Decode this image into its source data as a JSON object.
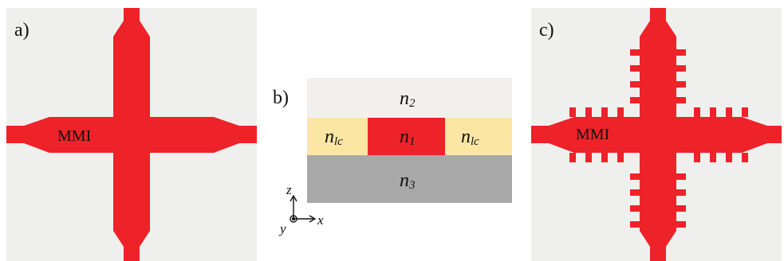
{
  "colors": {
    "waveguide": "#ee2229",
    "panel_background": "#efefee",
    "cladding_top": "#f1f0ee",
    "cladding_side": "#fbe6a4",
    "substrate": "#a8a8a8",
    "core": "#ee2229"
  },
  "panels": {
    "a": {
      "label": "a)",
      "mmi_label": "MMI"
    },
    "b": {
      "label": "b)",
      "top_region": {
        "symbol": "n",
        "subscript": "2"
      },
      "core_region": {
        "symbol": "n",
        "subscript": "1"
      },
      "side_left": {
        "symbol": "n",
        "subscript": "lc"
      },
      "side_right": {
        "symbol": "n",
        "subscript": "lc"
      },
      "bottom_region": {
        "symbol": "n",
        "subscript": "3"
      },
      "axes": {
        "z": "z",
        "x": "x",
        "y": "y"
      }
    },
    "c": {
      "label": "c)",
      "mmi_label": "MMI"
    }
  }
}
